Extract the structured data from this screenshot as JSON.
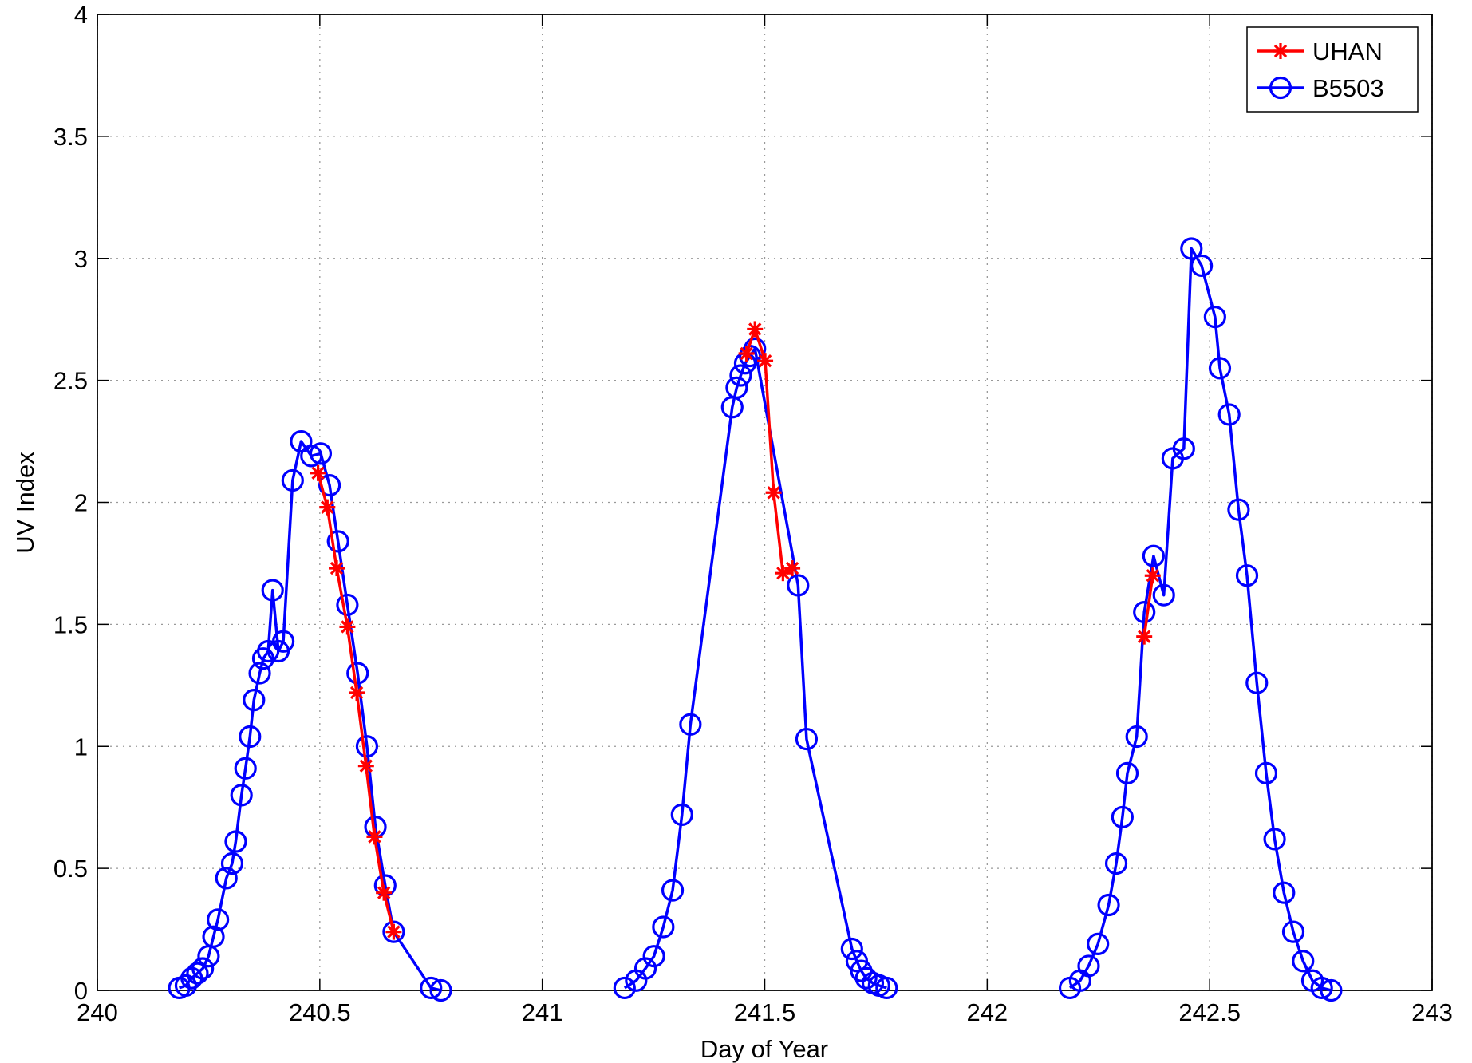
{
  "chart_data": {
    "type": "line",
    "xlabel": "Day of Year",
    "ylabel": "UV Index",
    "xlim": [
      240,
      243
    ],
    "xticks": [
      240,
      240.5,
      241,
      241.5,
      242,
      242.5,
      243
    ],
    "ylim": [
      0,
      4
    ],
    "yticks": [
      0,
      0.5,
      1,
      1.5,
      2,
      2.5,
      3,
      3.5,
      4
    ],
    "grid": true,
    "legend": "upper right",
    "series": [
      {
        "name": "UHAN",
        "color": "#ff0000",
        "marker": "asterisk",
        "x": [
          240.496,
          240.517,
          240.538,
          240.562,
          240.583,
          240.604,
          240.623,
          240.644,
          240.666,
          null,
          241.459,
          241.478,
          241.501,
          241.52,
          241.541,
          241.562,
          null,
          242.353,
          242.372
        ],
        "values": [
          2.12,
          1.98,
          1.73,
          1.49,
          1.22,
          0.92,
          0.63,
          0.4,
          0.24,
          null,
          2.61,
          2.71,
          2.58,
          2.04,
          1.71,
          1.73,
          null,
          1.45,
          1.7
        ]
      },
      {
        "name": "B5503",
        "color": "#0000ff",
        "marker": "circle",
        "x": [
          240.184,
          240.199,
          240.212,
          240.225,
          240.237,
          240.25,
          240.261,
          240.271,
          240.29,
          240.303,
          240.311,
          240.324,
          240.333,
          240.343,
          240.352,
          240.365,
          240.373,
          240.384,
          240.394,
          240.407,
          240.418,
          240.439,
          240.458,
          240.481,
          240.502,
          240.522,
          240.541,
          240.562,
          240.585,
          240.606,
          240.625,
          240.647,
          240.666,
          240.75,
          240.772,
          null,
          241.185,
          241.211,
          241.232,
          241.251,
          241.272,
          241.293,
          241.314,
          241.333,
          241.427,
          241.437,
          241.446,
          241.456,
          241.467,
          241.478,
          241.575,
          241.594,
          241.696,
          241.707,
          241.717,
          241.728,
          241.743,
          241.757,
          241.774,
          null,
          242.186,
          242.209,
          242.228,
          242.249,
          242.273,
          242.29,
          242.304,
          242.315,
          242.336,
          242.353,
          242.374,
          242.397,
          242.417,
          242.442,
          242.459,
          242.482,
          242.512,
          242.523,
          242.544,
          242.565,
          242.584,
          242.606,
          242.627,
          242.646,
          242.667,
          242.688,
          242.71,
          242.731,
          242.752,
          242.773
        ],
        "values": [
          0.01,
          0.02,
          0.05,
          0.07,
          0.09,
          0.14,
          0.22,
          0.29,
          0.46,
          0.52,
          0.61,
          0.8,
          0.91,
          1.04,
          1.19,
          1.3,
          1.36,
          1.39,
          1.64,
          1.39,
          1.43,
          2.09,
          2.25,
          2.19,
          2.2,
          2.07,
          1.84,
          1.58,
          1.3,
          1.0,
          0.67,
          0.43,
          0.24,
          0.01,
          0.0,
          null,
          0.01,
          0.04,
          0.09,
          0.14,
          0.26,
          0.41,
          0.72,
          1.09,
          2.39,
          2.47,
          2.52,
          2.57,
          2.6,
          2.63,
          1.66,
          1.03,
          0.17,
          0.12,
          0.08,
          0.05,
          0.03,
          0.02,
          0.01,
          null,
          0.01,
          0.04,
          0.1,
          0.19,
          0.35,
          0.52,
          0.71,
          0.89,
          1.04,
          1.55,
          1.78,
          1.62,
          2.18,
          2.22,
          3.04,
          2.97,
          2.76,
          2.55,
          2.36,
          1.97,
          1.7,
          1.26,
          0.89,
          0.62,
          0.4,
          0.24,
          0.12,
          0.04,
          0.01,
          0.0
        ]
      }
    ]
  }
}
